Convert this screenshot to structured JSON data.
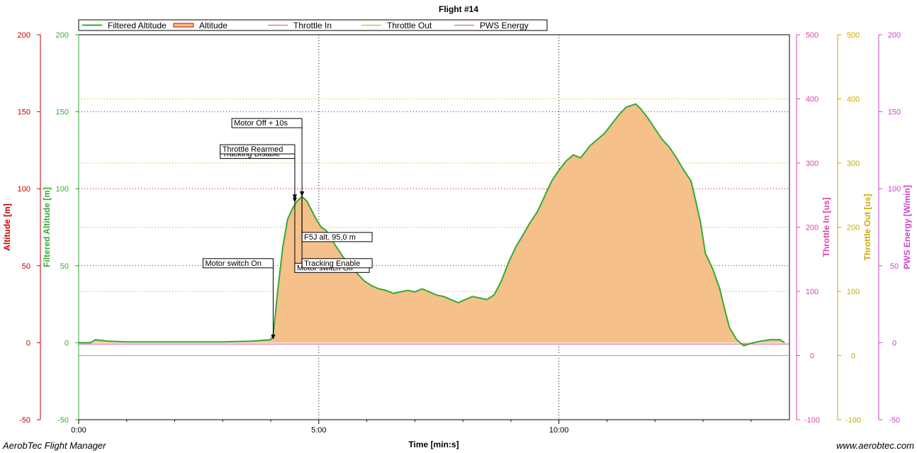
{
  "app_name": "AerobTec Flight Manager",
  "website": "www.aerobtec.com",
  "colors": {
    "altitude": "#cc0000",
    "filtered_altitude": "#33aa33",
    "altitude_fill": "#f5c08a",
    "throttle_in": "#dd44aa",
    "throttle_out": "#ccaa00",
    "pws_energy": "#cc44cc"
  },
  "chart_data": {
    "type": "area",
    "title": "Flight #14",
    "xlabel": "Time [min:s]",
    "x_unit": "min",
    "xlim": [
      0,
      14.8
    ],
    "x_ticks": [
      {
        "value": 0,
        "label": "0:00"
      },
      {
        "value": 5,
        "label": "5:00"
      },
      {
        "value": 10,
        "label": "10:00"
      }
    ],
    "grid": true,
    "legend_position": "top-left",
    "legend": [
      "Filtered Altitude",
      "Altitude",
      "Throttle In",
      "Throttle Out",
      "PWS Energy"
    ],
    "axes": [
      {
        "id": "altitude",
        "label": "Altitude [m]",
        "side": "left",
        "range": [
          -50,
          200
        ],
        "ticks": [
          -50,
          0,
          50,
          100,
          150,
          200
        ]
      },
      {
        "id": "filtered",
        "label": "Filtered Altitude [m]",
        "side": "left",
        "range": [
          -50,
          200
        ],
        "ticks": [
          -50,
          0,
          50,
          100,
          150,
          200
        ]
      },
      {
        "id": "throttle_in",
        "label": "Throttle In [us]",
        "side": "right",
        "range": [
          -100,
          500
        ],
        "ticks": [
          -100,
          0,
          100,
          200,
          300,
          400,
          500
        ]
      },
      {
        "id": "throttle_out",
        "label": "Throttle Out [us]",
        "side": "right",
        "range": [
          -100,
          500
        ],
        "ticks": [
          -100,
          0,
          100,
          200,
          300,
          400,
          500
        ]
      },
      {
        "id": "pws_energy",
        "label": "PWS Energy [W/min]",
        "side": "right",
        "range": [
          -50,
          200
        ],
        "ticks": [
          -50,
          0,
          50,
          100,
          150,
          200
        ]
      }
    ],
    "series": [
      {
        "name": "Filtered Altitude",
        "axis": "filtered",
        "x": [
          0,
          0.25,
          0.35,
          0.6,
          1.0,
          2.0,
          3.0,
          3.6,
          4.0,
          4.05,
          4.15,
          4.25,
          4.35,
          4.45,
          4.55,
          4.65,
          4.75,
          4.85,
          4.95,
          5.05,
          5.15,
          5.25,
          5.35,
          5.5,
          5.65,
          5.8,
          5.95,
          6.1,
          6.25,
          6.4,
          6.55,
          6.7,
          6.85,
          7.0,
          7.15,
          7.3,
          7.45,
          7.6,
          7.75,
          7.9,
          8.05,
          8.2,
          8.35,
          8.5,
          8.65,
          8.8,
          8.95,
          9.1,
          9.25,
          9.4,
          9.55,
          9.7,
          9.85,
          10.0,
          10.15,
          10.3,
          10.45,
          10.55,
          10.65,
          10.8,
          10.95,
          11.1,
          11.25,
          11.4,
          11.5,
          11.6,
          11.7,
          11.85,
          12.0,
          12.15,
          12.3,
          12.45,
          12.6,
          12.75,
          12.85,
          12.95,
          13.05,
          13.2,
          13.35,
          13.45,
          13.55,
          13.7,
          13.85,
          13.95,
          14.05,
          14.2,
          14.4,
          14.6,
          14.7
        ],
        "values": [
          0,
          0,
          2,
          1,
          0.5,
          0.5,
          0.5,
          1,
          2,
          5,
          35,
          62,
          80,
          87,
          92,
          95,
          92,
          86,
          80,
          75,
          73,
          68,
          63,
          56,
          50,
          45,
          40,
          37,
          35,
          34,
          32,
          33,
          34,
          33,
          35,
          33,
          31,
          30,
          28,
          26,
          28,
          30,
          29,
          28,
          31,
          40,
          52,
          62,
          70,
          78,
          85,
          95,
          105,
          112,
          118,
          122,
          120,
          124,
          128,
          132,
          136,
          142,
          148,
          153,
          154,
          155,
          152,
          146,
          139,
          132,
          127,
          120,
          112,
          105,
          92,
          78,
          58,
          48,
          35,
          22,
          10,
          2,
          -2,
          -1,
          0,
          1,
          2,
          2,
          0
        ]
      },
      {
        "name": "Altitude",
        "axis": "altitude",
        "fill": true,
        "x": [
          0,
          0.25,
          0.35,
          0.6,
          1.0,
          2.0,
          3.0,
          3.6,
          4.0,
          4.05,
          4.15,
          4.25,
          4.35,
          4.45,
          4.55,
          4.65,
          4.75,
          4.85,
          4.95,
          5.05,
          5.15,
          5.25,
          5.35,
          5.5,
          5.65,
          5.8,
          5.95,
          6.1,
          6.25,
          6.4,
          6.55,
          6.7,
          6.85,
          7.0,
          7.15,
          7.3,
          7.45,
          7.6,
          7.75,
          7.9,
          8.05,
          8.2,
          8.35,
          8.5,
          8.65,
          8.8,
          8.95,
          9.1,
          9.25,
          9.4,
          9.55,
          9.7,
          9.85,
          10.0,
          10.15,
          10.3,
          10.45,
          10.55,
          10.65,
          10.8,
          10.95,
          11.1,
          11.25,
          11.4,
          11.5,
          11.6,
          11.7,
          11.85,
          12.0,
          12.15,
          12.3,
          12.45,
          12.6,
          12.75,
          12.85,
          12.95,
          13.05,
          13.2,
          13.35,
          13.45,
          13.55,
          13.7,
          13.85,
          13.95,
          14.05,
          14.2,
          14.4,
          14.6,
          14.7
        ],
        "values": [
          0,
          0,
          2,
          1,
          0.5,
          0.5,
          0.5,
          1,
          2,
          5,
          35,
          62,
          80,
          87,
          92,
          95,
          92,
          86,
          80,
          75,
          73,
          68,
          63,
          56,
          50,
          45,
          40,
          37,
          35,
          34,
          32,
          33,
          34,
          33,
          35,
          33,
          31,
          30,
          28,
          26,
          28,
          30,
          29,
          28,
          31,
          40,
          52,
          62,
          70,
          78,
          85,
          95,
          105,
          112,
          118,
          122,
          120,
          124,
          128,
          132,
          136,
          142,
          148,
          153,
          154,
          155,
          152,
          146,
          139,
          132,
          127,
          120,
          112,
          105,
          92,
          78,
          58,
          48,
          35,
          22,
          10,
          2,
          -2,
          -1,
          0,
          1,
          2,
          2,
          0
        ]
      },
      {
        "name": "Throttle In",
        "axis": "throttle_in",
        "x": [
          0,
          14.8
        ],
        "values": [
          18,
          18
        ]
      },
      {
        "name": "Throttle Out",
        "axis": "throttle_out",
        "x": [
          0,
          14.8
        ],
        "values": [
          0,
          0
        ]
      }
    ],
    "annotations": [
      {
        "label": "Motor switch On",
        "x": 4.05,
        "y": 2,
        "align": "left",
        "label_y": 50
      },
      {
        "label": "Motor switch Off",
        "x": 4.5,
        "y": 91,
        "align": "right",
        "label_y": 47
      },
      {
        "label": "Tracking Enable",
        "x": 4.65,
        "y": 95,
        "align": "right",
        "label_y": 50
      },
      {
        "label": "F5J alt. 95,0 m",
        "x": 4.65,
        "y": 95,
        "align": "right",
        "label_y": 67
      },
      {
        "label": "Tracking Disable",
        "x": 4.5,
        "y": 93,
        "align": "left",
        "label_y": 121
      },
      {
        "label": "Throttle Rearmed",
        "x": 4.5,
        "y": 93,
        "align": "left",
        "label_y": 124
      },
      {
        "label": "Motor Off + 10s",
        "x": 4.65,
        "y": 95,
        "align": "left",
        "label_y": 141
      }
    ]
  }
}
